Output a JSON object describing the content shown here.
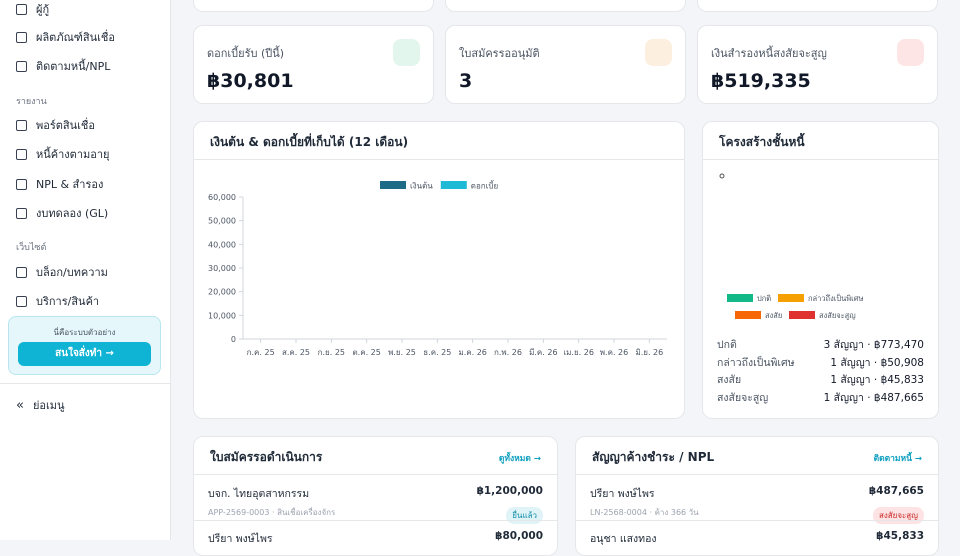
{
  "sidebar": {
    "items_top": [
      "ผู้กู้",
      "ผลิตภัณฑ์สินเชื่อ",
      "ติดตามหนี้/NPL"
    ],
    "sections": [
      {
        "title": "รายงาน",
        "items": [
          "พอร์ตสินเชื่อ",
          "หนี้ค้างตามอายุ",
          "NPL & สำรอง",
          "งบทดลอง (GL)"
        ]
      },
      {
        "title": "เว็บไซต์",
        "items": [
          "บล็อก/บทความ",
          "บริการ/สินค้า"
        ]
      }
    ],
    "promo": {
      "text": "นี่คือระบบตัวอย่าง",
      "button": "สนใจสั่งทำ →"
    },
    "collapse": "ย่อเมนู"
  },
  "stats": [
    {
      "label": "ดอกเบี้ยรับ (ปีนี้)",
      "value": "฿30,801"
    },
    {
      "label": "ใบสมัครรออนุมัติ",
      "value": "3"
    },
    {
      "label": "เงินสำรองหนี้สงสัยจะสูญ",
      "value": "฿519,335"
    }
  ],
  "revenue_chart": {
    "type": "bar",
    "title": "เงินต้น & ดอกเบี้ยที่เก็บได้ (12 เดือน)",
    "series": [
      {
        "name": "เงินต้น",
        "color": "#1d6b86"
      },
      {
        "name": "ดอกเบี้ย",
        "color": "#1fbad6"
      }
    ],
    "categories": [
      "ก.ค. 25",
      "ส.ค. 25",
      "ก.ย. 25",
      "ต.ค. 25",
      "พ.ย. 25",
      "ธ.ค. 25",
      "ม.ค. 26",
      "ก.พ. 26",
      "มี.ค. 26",
      "เม.ย. 26",
      "พ.ค. 26",
      "มิ.ย. 26"
    ],
    "ylim": [
      0,
      60000
    ],
    "yticks": [
      0,
      {
        "value": 10000,
        "label": "10,000"
      },
      {
        "value": 20000,
        "label": "20,000"
      },
      {
        "value": 30000,
        "label": "30,000"
      },
      {
        "value": 40000,
        "label": "40,000"
      },
      {
        "value": 50000,
        "label": "50,000"
      },
      {
        "value": 60000,
        "label": "60,000"
      }
    ],
    "grid": false
  },
  "debt_structure": {
    "title": "โครงสร้างชั้นหนี้",
    "legend": [
      {
        "name": "ปกติ",
        "color": "#12b886"
      },
      {
        "name": "กล่าวถึงเป็นพิเศษ",
        "color": "#f59f00"
      },
      {
        "name": "สงสัย",
        "color": "#f76707"
      },
      {
        "name": "สงสัยจะสูญ",
        "color": "#e03131"
      }
    ],
    "rows": [
      [
        "ปกติ",
        "3 สัญญา · ฿773,470"
      ],
      [
        "กล่าวถึงเป็นพิเศษ",
        "1 สัญญา · ฿50,908"
      ],
      [
        "สงสัย",
        "1 สัญญา · ฿45,833"
      ],
      [
        "สงสัยจะสูญ",
        "1 สัญญา · ฿487,665"
      ]
    ]
  },
  "applications": {
    "title": "ใบสมัครรอดำเนินการ",
    "link": "ดูทั้งหมด →",
    "rows": [
      {
        "name": "บจก. ไทยอุตสาหกรรม",
        "sub": "APP-2569-0003 · สินเชื่อเครื่องจักร",
        "amount": "฿1,200,000",
        "status": "ยื่นแล้ว"
      },
      {
        "name": "ปรียา พงษ์ไพร",
        "amount": "฿80,000"
      }
    ]
  },
  "npl": {
    "title": "สัญญาค้างชำระ / NPL",
    "link": "ติดตามหนี้ →",
    "rows": [
      {
        "name": "ปรียา พงษ์ไพร",
        "sub": "LN-2568-0004 · ค้าง 366 วัน",
        "amount": "฿487,665",
        "status": "สงสัยจะสูญ"
      },
      {
        "name": "อนุชา แสงทอง",
        "amount": "฿45,833"
      }
    ]
  }
}
